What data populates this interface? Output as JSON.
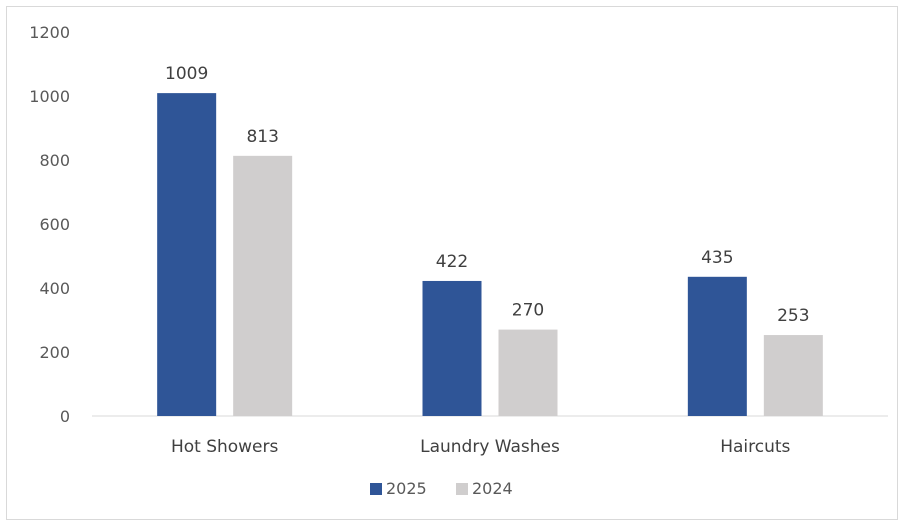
{
  "chart_data": {
    "type": "bar",
    "categories": [
      "Hot Showers",
      "Laundry Washes",
      "Haircuts"
    ],
    "series": [
      {
        "name": "2025",
        "values": [
          1009,
          422,
          435
        ],
        "color": "#2f5597"
      },
      {
        "name": "2024",
        "values": [
          813,
          270,
          253
        ],
        "color": "#d0cece"
      }
    ],
    "ylim": [
      0,
      1200
    ],
    "yticks": [
      0,
      200,
      400,
      600,
      800,
      1000,
      1200
    ],
    "grid": false,
    "legend": "bottom",
    "title": "",
    "xlabel": "",
    "ylabel": ""
  }
}
